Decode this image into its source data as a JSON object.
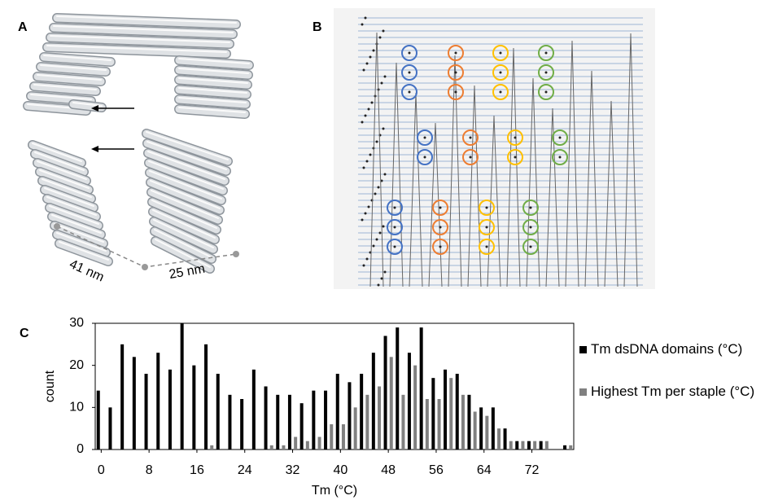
{
  "panels": {
    "a": {
      "label": "A",
      "length_label": "41 nm",
      "width_label": "25 nm"
    },
    "b": {
      "label": "B"
    },
    "c": {
      "label": "C"
    }
  },
  "chart_data": {
    "type": "bar",
    "x_label": "Tm (°C)",
    "y_label": "count",
    "x": [
      0,
      2,
      4,
      6,
      8,
      10,
      12,
      14,
      16,
      18,
      20,
      22,
      24,
      26,
      28,
      30,
      32,
      34,
      36,
      38,
      40,
      42,
      44,
      46,
      48,
      50,
      52,
      54,
      56,
      58,
      60,
      62,
      64,
      66,
      68,
      70,
      72,
      74,
      76,
      78
    ],
    "xlim": [
      -1,
      79
    ],
    "xticks": [
      0,
      8,
      16,
      24,
      32,
      40,
      48,
      56,
      64,
      72
    ],
    "ylim": [
      0,
      30
    ],
    "yticks": [
      0,
      10,
      20,
      30
    ],
    "series": [
      {
        "name": "Tm dsDNA domains (°C)",
        "color": "#000000",
        "values": [
          14,
          10,
          25,
          22,
          18,
          23,
          19,
          30,
          20,
          25,
          18,
          13,
          12,
          19,
          15,
          13,
          13,
          11,
          14,
          14,
          18,
          16,
          18,
          23,
          27,
          29,
          23,
          29,
          17,
          19,
          18,
          13,
          10,
          10,
          5,
          2,
          2,
          2,
          0,
          1
        ]
      },
      {
        "name": "Highest Tm per staple (°C)",
        "color": "#808080",
        "values": [
          0,
          0,
          0,
          0,
          0,
          0,
          0,
          0,
          0,
          1,
          0,
          0,
          0,
          0,
          1,
          1,
          3,
          2,
          3,
          6,
          6,
          10,
          13,
          15,
          22,
          13,
          20,
          12,
          12,
          17,
          13,
          9,
          8,
          5,
          2,
          2,
          2,
          2,
          0,
          1
        ]
      }
    ]
  }
}
